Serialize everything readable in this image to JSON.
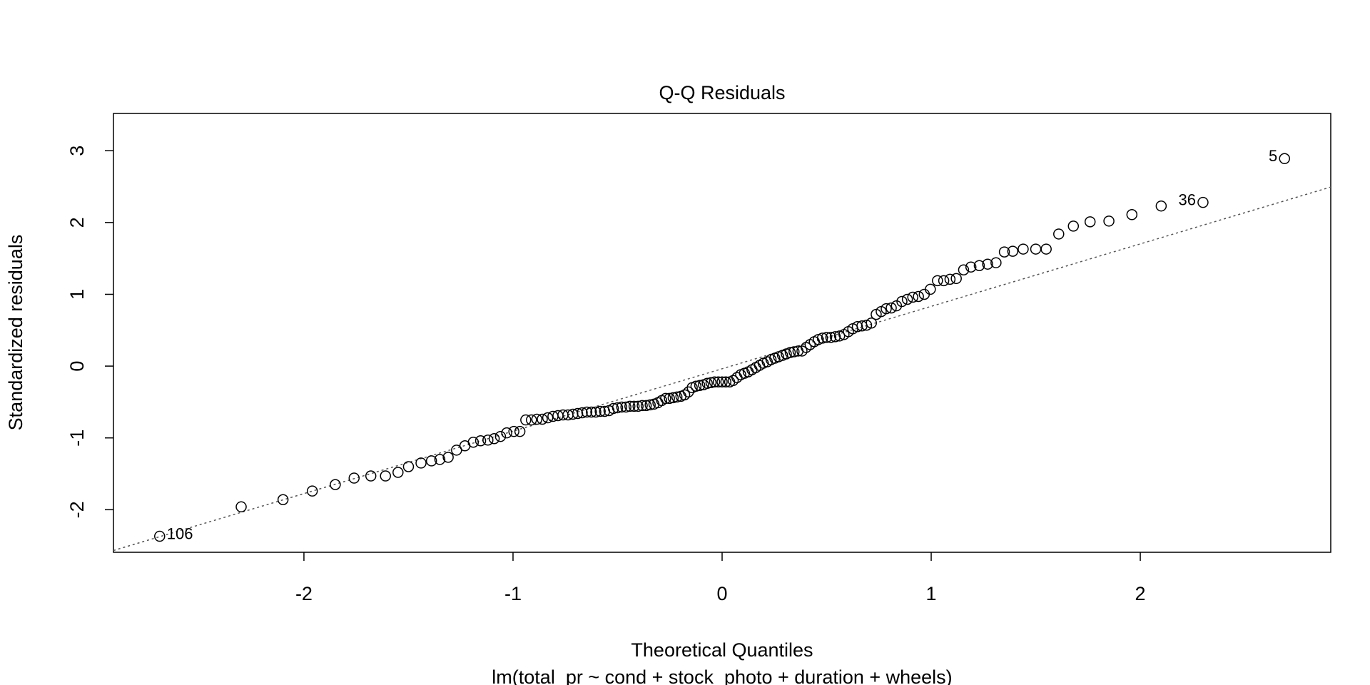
{
  "chart_data": {
    "type": "scatter",
    "title": "Q-Q Residuals",
    "xlabel": "Theoretical Quantiles",
    "subtitle": "lm(total_pr ~ cond + stock_photo + duration + wheels)",
    "ylabel": "Standardized residuals",
    "xlim": [
      -2.911,
      2.911
    ],
    "ylim": [
      -2.593,
      3.519
    ],
    "xticks": [
      -2,
      -1,
      0,
      1,
      2
    ],
    "yticks": [
      -2,
      -1,
      0,
      1,
      2,
      3
    ],
    "x": [
      -2.69,
      -2.3,
      -2.1,
      -1.96,
      -1.85,
      -1.76,
      -1.68,
      -1.61,
      -1.55,
      -1.5,
      -1.44,
      -1.39,
      -1.35,
      -1.31,
      -1.27,
      -1.23,
      -1.19,
      -1.155,
      -1.12,
      -1.09,
      -1.06,
      -1.03,
      -0.996,
      -0.967,
      -0.939,
      -0.912,
      -0.886,
      -0.86,
      -0.834,
      -0.809,
      -0.785,
      -0.761,
      -0.737,
      -0.714,
      -0.691,
      -0.669,
      -0.647,
      -0.625,
      -0.604,
      -0.583,
      -0.562,
      -0.541,
      -0.52,
      -0.5,
      -0.48,
      -0.46,
      -0.441,
      -0.421,
      -0.402,
      -0.382,
      -0.363,
      -0.344,
      -0.326,
      -0.307,
      -0.289,
      -0.27,
      -0.252,
      -0.234,
      -0.216,
      -0.197,
      -0.179,
      -0.161,
      -0.143,
      -0.125,
      -0.107,
      -0.089,
      -0.071,
      -0.053,
      -0.036,
      -0.018,
      0,
      0.018,
      0.036,
      0.053,
      0.071,
      0.089,
      0.107,
      0.125,
      0.143,
      0.161,
      0.179,
      0.197,
      0.216,
      0.234,
      0.252,
      0.27,
      0.289,
      0.307,
      0.326,
      0.344,
      0.363,
      0.382,
      0.402,
      0.421,
      0.441,
      0.46,
      0.48,
      0.5,
      0.52,
      0.541,
      0.562,
      0.583,
      0.604,
      0.625,
      0.647,
      0.669,
      0.691,
      0.714,
      0.737,
      0.761,
      0.785,
      0.809,
      0.834,
      0.86,
      0.886,
      0.912,
      0.939,
      0.967,
      0.996,
      1.03,
      1.06,
      1.09,
      1.12,
      1.155,
      1.19,
      1.23,
      1.27,
      1.31,
      1.35,
      1.39,
      1.44,
      1.5,
      1.55,
      1.61,
      1.68,
      1.76,
      1.85,
      1.96,
      2.1,
      2.3,
      2.69
    ],
    "values": [
      -2.37,
      -1.96,
      -1.86,
      -1.74,
      -1.65,
      -1.56,
      -1.53,
      -1.53,
      -1.48,
      -1.4,
      -1.35,
      -1.32,
      -1.3,
      -1.27,
      -1.17,
      -1.11,
      -1.06,
      -1.04,
      -1.03,
      -1.01,
      -0.98,
      -0.93,
      -0.91,
      -0.91,
      -0.75,
      -0.75,
      -0.74,
      -0.74,
      -0.72,
      -0.7,
      -0.69,
      -0.68,
      -0.68,
      -0.67,
      -0.66,
      -0.65,
      -0.64,
      -0.64,
      -0.64,
      -0.63,
      -0.63,
      -0.62,
      -0.59,
      -0.58,
      -0.57,
      -0.57,
      -0.56,
      -0.56,
      -0.56,
      -0.55,
      -0.55,
      -0.54,
      -0.53,
      -0.51,
      -0.48,
      -0.45,
      -0.45,
      -0.44,
      -0.43,
      -0.42,
      -0.4,
      -0.36,
      -0.3,
      -0.28,
      -0.27,
      -0.26,
      -0.24,
      -0.23,
      -0.22,
      -0.22,
      -0.22,
      -0.22,
      -0.22,
      -0.2,
      -0.16,
      -0.12,
      -0.1,
      -0.08,
      -0.05,
      -0.02,
      0.01,
      0.04,
      0.06,
      0.09,
      0.11,
      0.13,
      0.15,
      0.17,
      0.19,
      0.2,
      0.21,
      0.21,
      0.26,
      0.3,
      0.34,
      0.37,
      0.39,
      0.4,
      0.4,
      0.41,
      0.42,
      0.44,
      0.48,
      0.52,
      0.55,
      0.56,
      0.57,
      0.6,
      0.72,
      0.76,
      0.8,
      0.81,
      0.84,
      0.9,
      0.93,
      0.96,
      0.97,
      1.0,
      1.07,
      1.19,
      1.19,
      1.21,
      1.22,
      1.34,
      1.38,
      1.4,
      1.42,
      1.44,
      1.59,
      1.6,
      1.63,
      1.63,
      1.63,
      1.84,
      1.95,
      2.01,
      2.02,
      2.11,
      2.23,
      2.28,
      2.89
    ],
    "reference_line": {
      "x": [
        -2.911,
        2.911
      ],
      "values": [
        -2.568,
        2.494
      ]
    },
    "annotations": [
      {
        "point": 0,
        "text": "106",
        "side": "right"
      },
      {
        "point": 139,
        "text": "36",
        "side": "left"
      },
      {
        "point": 140,
        "text": "5",
        "side": "left"
      }
    ]
  }
}
